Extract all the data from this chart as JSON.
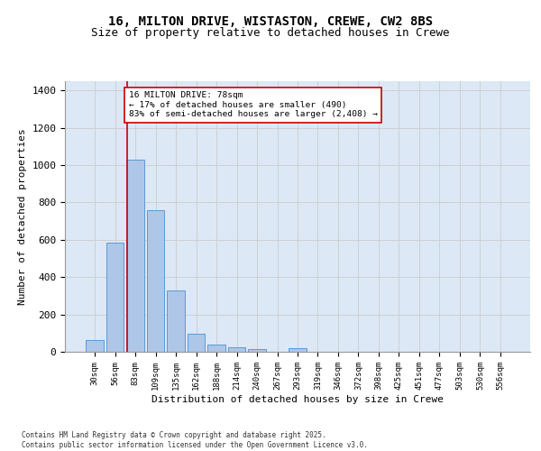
{
  "title_line1": "16, MILTON DRIVE, WISTASTON, CREWE, CW2 8BS",
  "title_line2": "Size of property relative to detached houses in Crewe",
  "xlabel": "Distribution of detached houses by size in Crewe",
  "ylabel": "Number of detached properties",
  "categories": [
    "30sqm",
    "56sqm",
    "83sqm",
    "109sqm",
    "135sqm",
    "162sqm",
    "188sqm",
    "214sqm",
    "240sqm",
    "267sqm",
    "293sqm",
    "319sqm",
    "346sqm",
    "372sqm",
    "398sqm",
    "425sqm",
    "451sqm",
    "477sqm",
    "503sqm",
    "530sqm",
    "556sqm"
  ],
  "values": [
    65,
    585,
    1030,
    760,
    330,
    95,
    38,
    25,
    14,
    0,
    18,
    0,
    0,
    0,
    0,
    0,
    0,
    0,
    0,
    0,
    0
  ],
  "bar_color": "#aec6e8",
  "bar_edge_color": "#5b9bd5",
  "annotation_text_line1": "16 MILTON DRIVE: 78sqm",
  "annotation_text_line2": "← 17% of detached houses are smaller (490)",
  "annotation_text_line3": "83% of semi-detached houses are larger (2,408) →",
  "annotation_box_color": "#ffffff",
  "annotation_box_edge": "#cc0000",
  "vline_color": "#cc0000",
  "vline_x": 1.62,
  "ylim": [
    0,
    1450
  ],
  "yticks": [
    0,
    200,
    400,
    600,
    800,
    1000,
    1200,
    1400
  ],
  "grid_color": "#cccccc",
  "bg_color": "#dce8f5",
  "footer_text": "Contains HM Land Registry data © Crown copyright and database right 2025.\nContains public sector information licensed under the Open Government Licence v3.0.",
  "title_fontsize": 10,
  "subtitle_fontsize": 9
}
